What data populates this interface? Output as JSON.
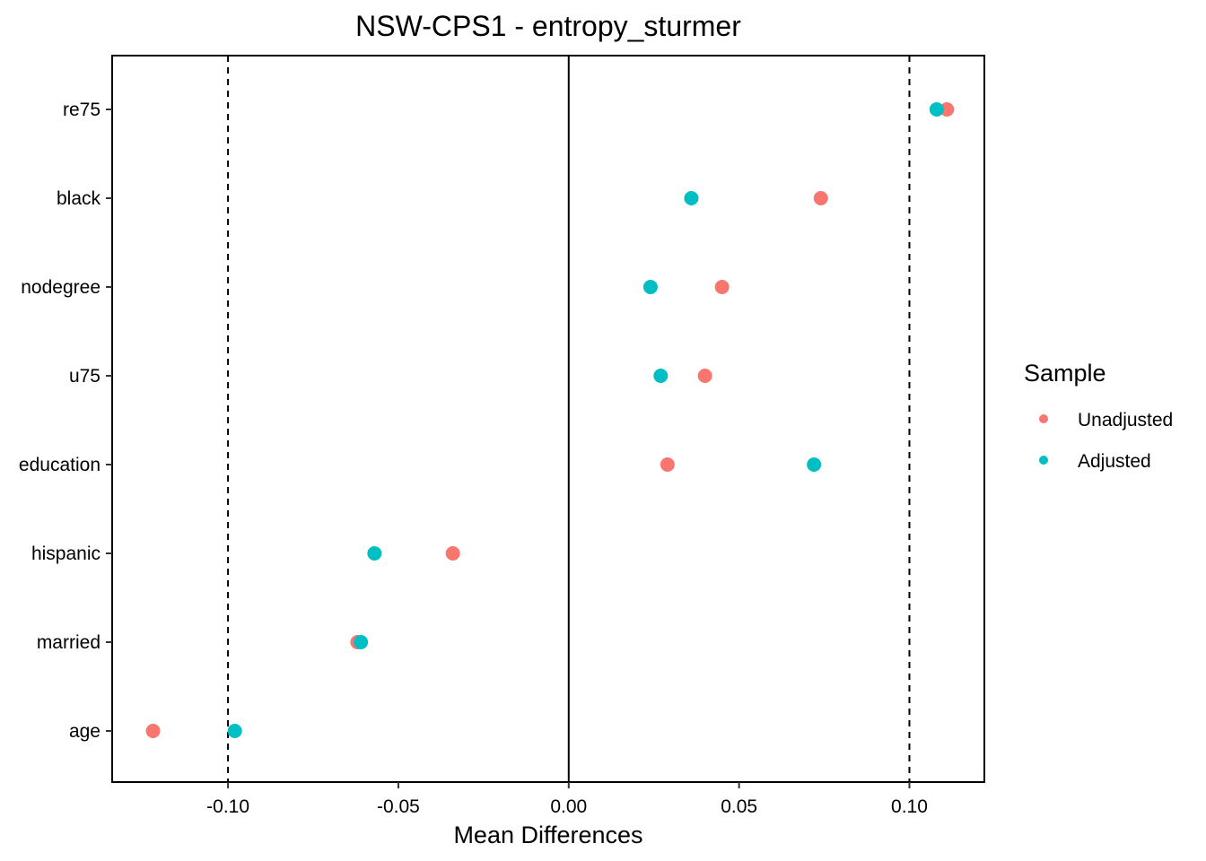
{
  "chart_data": {
    "type": "scatter",
    "title": "NSW-CPS1 - entropy_sturmer",
    "xlabel": "Mean Differences",
    "ylabel": "",
    "xlim": [
      -0.134,
      0.122
    ],
    "x_ticks": [
      -0.1,
      -0.05,
      0.0,
      0.05,
      0.1
    ],
    "x_tick_labels": [
      "-0.10",
      "-0.05",
      "0.00",
      "0.05",
      "0.10"
    ],
    "categories": [
      "re75",
      "black",
      "nodegree",
      "u75",
      "education",
      "hispanic",
      "married",
      "age"
    ],
    "reference_lines": {
      "solid": [
        0.0
      ],
      "dashed": [
        -0.1,
        0.1
      ]
    },
    "grid": false,
    "legend": {
      "title": "Sample",
      "position": "right",
      "entries": [
        "Unadjusted",
        "Adjusted"
      ]
    },
    "series": [
      {
        "name": "Unadjusted",
        "color": "#F8766D",
        "values": [
          0.111,
          0.074,
          0.045,
          0.04,
          0.029,
          -0.034,
          -0.062,
          -0.122
        ]
      },
      {
        "name": "Adjusted",
        "color": "#00BFC4",
        "values": [
          0.108,
          0.036,
          0.024,
          0.027,
          0.072,
          -0.057,
          -0.061,
          -0.098
        ]
      }
    ]
  }
}
